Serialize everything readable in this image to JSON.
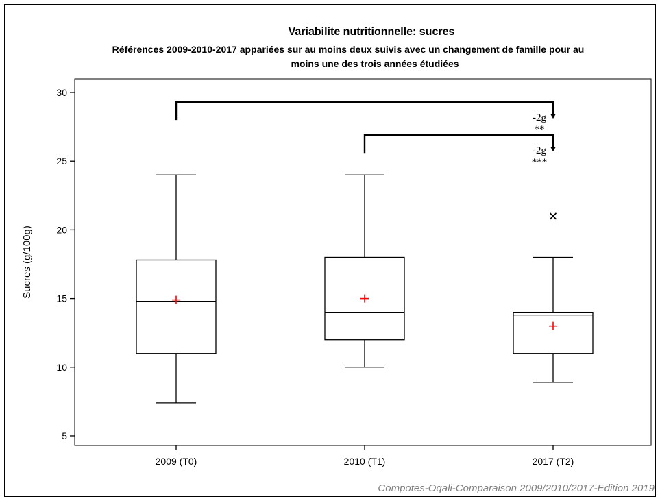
{
  "chart_data": {
    "type": "boxplot",
    "title": "Variabilite nutritionnelle: sucres",
    "subtitle_lines": [
      "Références 2009-2010-2017 appariées sur au moins deux suivis avec un changement de famille pour au",
      "moins une des trois années étudiées"
    ],
    "ylabel": "Sucres (g/100g)",
    "ylim": [
      4.3,
      31
    ],
    "yticks": [
      5,
      10,
      15,
      20,
      25,
      30
    ],
    "categories": [
      "2009 (T0)",
      "2010 (T1)",
      "2017 (T2)"
    ],
    "boxes": [
      {
        "category": "2009 (T0)",
        "whisker_low": 7.4,
        "q1": 11,
        "median": 14.8,
        "q3": 17.8,
        "whisker_high": 24,
        "mean": 14.9,
        "outliers": []
      },
      {
        "category": "2010 (T1)",
        "whisker_low": 10,
        "q1": 12,
        "median": 14,
        "q3": 18,
        "whisker_high": 24,
        "mean": 15,
        "outliers": []
      },
      {
        "category": "2017 (T2)",
        "whisker_low": 8.9,
        "q1": 11,
        "median": 13.8,
        "q3": 14,
        "whisker_high": 18,
        "mean": 13,
        "outliers": [
          21
        ]
      }
    ],
    "comparisons": [
      {
        "from": "2009 (T0)",
        "to": "2017 (T2)",
        "y": 29.3,
        "label": "-2g",
        "significance": "**"
      },
      {
        "from": "2010 (T1)",
        "to": "2017 (T2)",
        "y": 26.9,
        "label": "-2g",
        "significance": "***"
      }
    ],
    "colors": {
      "box": "#000000",
      "mean_marker": "#ff0000",
      "footnote": "#808080"
    },
    "footnote": "Compotes-Oqali-Comparaison 2009/2010/2017-Edition 2019",
    "grid": false,
    "legend": "none"
  }
}
